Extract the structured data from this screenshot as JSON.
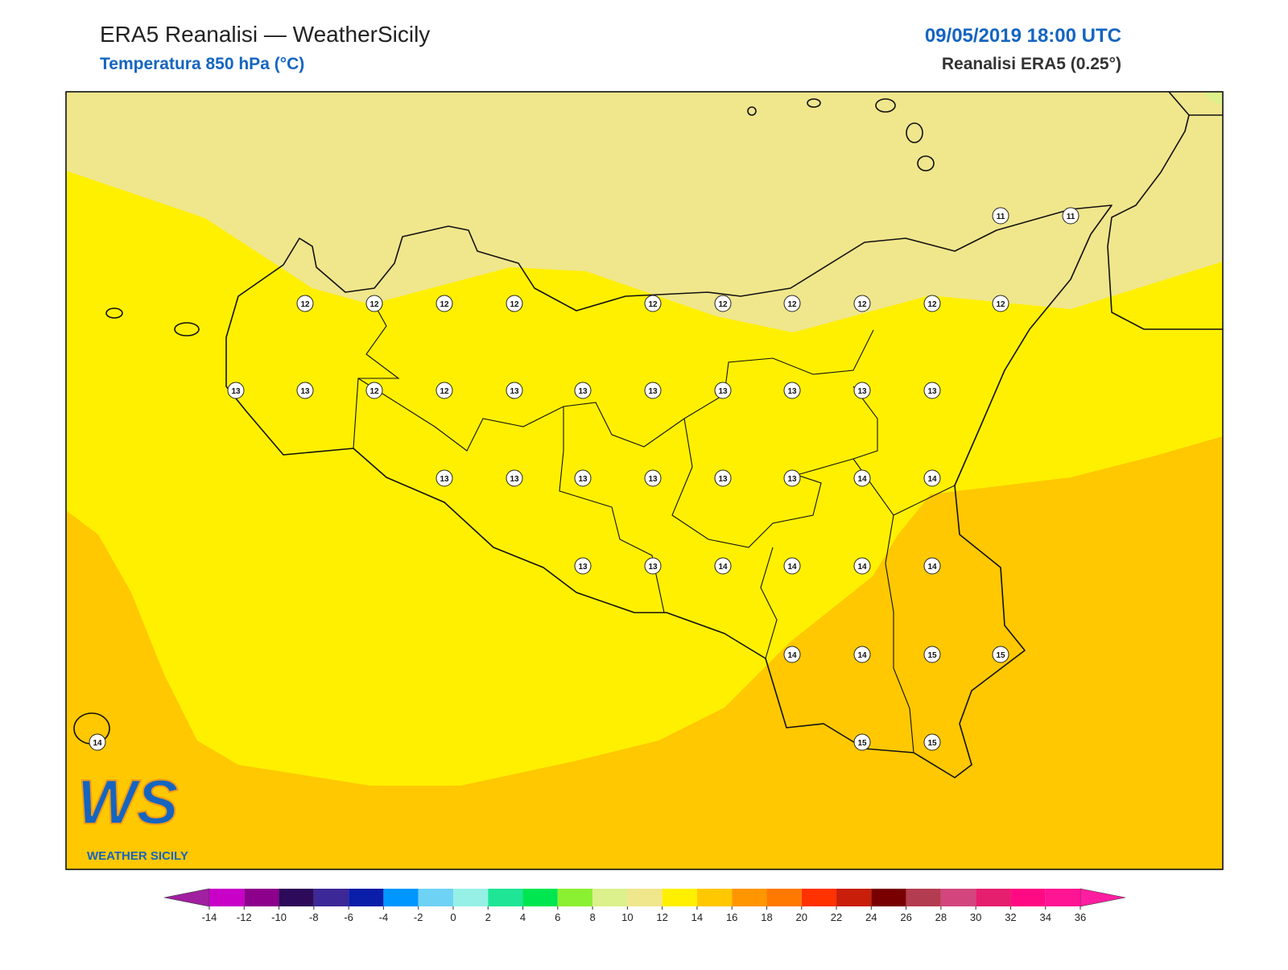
{
  "header": {
    "title": "ERA5 Reanalisi — WeatherSicily",
    "subtitle": "Temperatura 850 hPa (°C)",
    "datetime": "09/05/2019 18:00 UTC",
    "source": "Reanalisi ERA5 (0.25°)"
  },
  "map": {
    "stations": [
      11,
      11,
      12,
      12,
      12,
      12,
      12,
      12,
      12,
      12,
      12,
      12,
      13,
      13,
      12,
      12,
      13,
      13,
      13,
      13,
      13,
      13,
      13,
      13,
      13,
      13,
      13,
      13,
      13,
      14,
      14,
      13,
      13,
      14,
      14,
      14,
      14,
      14,
      14,
      15,
      15,
      14,
      15,
      15
    ]
  },
  "logo": {
    "mark": "WS",
    "name": "WEATHER SICILY"
  },
  "colorbar": {
    "ticks": [
      -14,
      -12,
      -10,
      -8,
      -6,
      -4,
      -2,
      0,
      2,
      4,
      6,
      8,
      10,
      12,
      14,
      16,
      18,
      20,
      22,
      24,
      26,
      28,
      30,
      32,
      34,
      36
    ],
    "colors": [
      "#c800c8",
      "#8c008c",
      "#2d0a5a",
      "#3c2896",
      "#0a1eaa",
      "#0096ff",
      "#6ed2f5",
      "#96f0e6",
      "#1ee696",
      "#00e650",
      "#8cf032",
      "#dcf08c",
      "#f0e68c",
      "#fff000",
      "#ffc800",
      "#ff9600",
      "#ff7800",
      "#ff3200",
      "#c81e0a",
      "#780000",
      "#b43c50",
      "#d2467d",
      "#e61e6e",
      "#ff0a82",
      "#ff1493"
    ],
    "under": "#a020a0",
    "over": "#ff1ea0"
  }
}
